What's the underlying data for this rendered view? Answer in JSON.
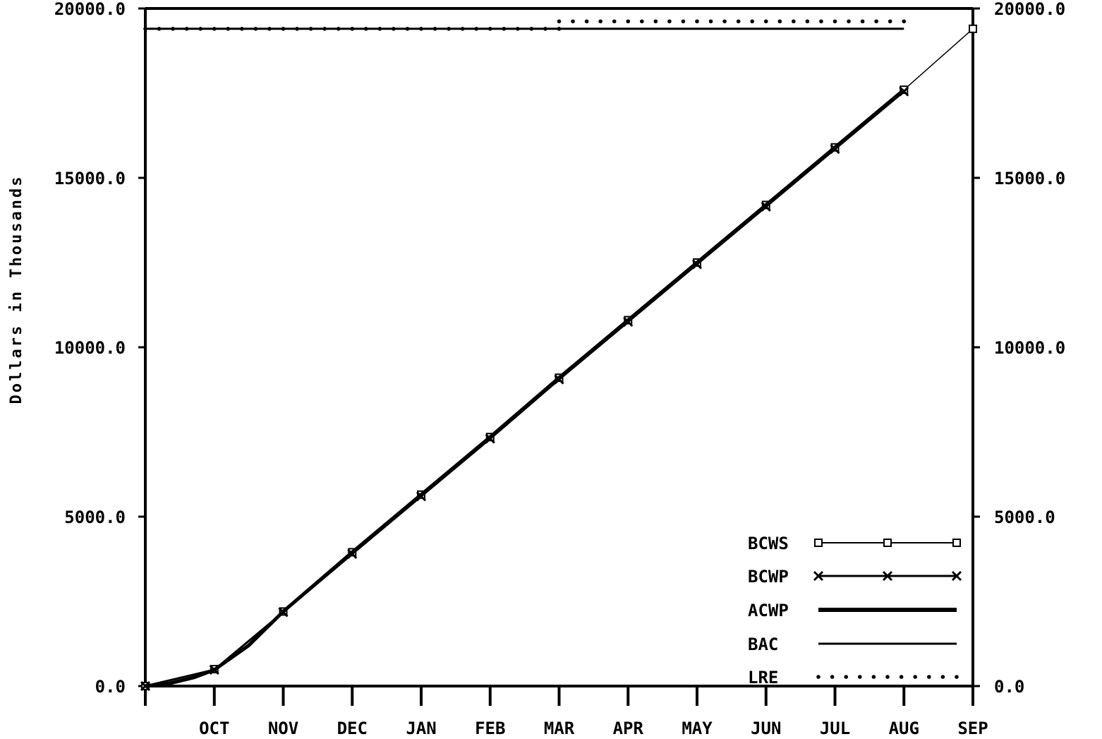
{
  "chart_data": {
    "type": "line",
    "ylabel": "Dollars in Thousands",
    "ylim": [
      0,
      20000
    ],
    "yticks": [
      0,
      5000,
      10000,
      15000,
      20000
    ],
    "ytick_labels": [
      "0.0",
      "5000.0",
      "10000.0",
      "15000.0",
      "20000.0"
    ],
    "categories": [
      "OCT",
      "NOV",
      "DEC",
      "JAN",
      "FEB",
      "MAR",
      "APR",
      "MAY",
      "JUN",
      "JUL",
      "AUG",
      "SEP"
    ],
    "series": [
      {
        "name": "BCWS",
        "marker": "square",
        "x": [
          0,
          1,
          2,
          3,
          4,
          5,
          6,
          7,
          8,
          9,
          10,
          11,
          12
        ],
        "values": [
          0,
          500,
          2200,
          3950,
          5650,
          7350,
          9100,
          10800,
          12500,
          14200,
          15900,
          17600,
          19400
        ]
      },
      {
        "name": "BCWP",
        "marker": "x",
        "x": [
          0,
          1,
          2,
          3,
          4,
          5,
          6,
          7,
          8,
          9,
          10,
          11
        ],
        "values": [
          0,
          480,
          2180,
          3900,
          5600,
          7300,
          9050,
          10750,
          12450,
          14150,
          15850,
          17550
        ]
      },
      {
        "name": "ACWP",
        "marker": "none",
        "x": [
          0,
          0.35,
          0.7,
          1,
          1.5,
          2,
          3,
          4,
          5,
          6,
          7,
          8,
          9,
          10,
          11
        ],
        "values": [
          0,
          80,
          250,
          480,
          1200,
          2200,
          3950,
          5650,
          7350,
          9100,
          10800,
          12500,
          14200,
          15900,
          17600
        ]
      },
      {
        "name": "BAC",
        "marker": "none",
        "x": [
          0,
          11
        ],
        "values": [
          19400,
          19400
        ]
      },
      {
        "name": "LRE",
        "marker": "dot",
        "x": [
          0,
          3,
          6,
          6,
          11
        ],
        "values": [
          19400,
          19400,
          19400,
          19620,
          19620
        ]
      }
    ],
    "legend": {
      "position": "bottom-right",
      "entries": [
        "BCWS",
        "BCWP",
        "ACWP",
        "BAC",
        "LRE"
      ]
    },
    "grid": false
  }
}
